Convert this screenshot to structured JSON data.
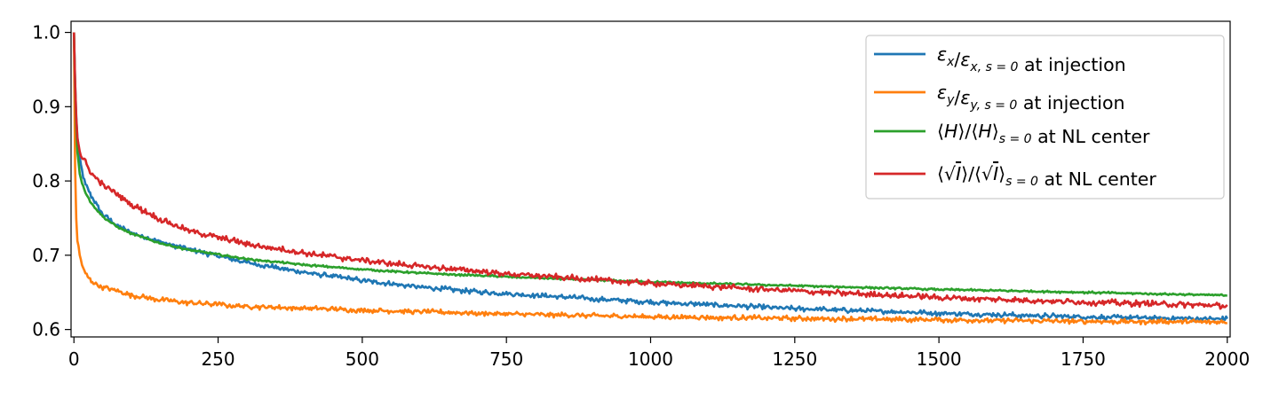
{
  "chart_data": {
    "type": "line",
    "title": "",
    "xlabel": "",
    "ylabel": "",
    "xlim": [
      -5,
      2005
    ],
    "ylim": [
      0.59,
      1.015
    ],
    "x_ticks": [
      0,
      250,
      500,
      750,
      1000,
      1250,
      1500,
      1750,
      2000
    ],
    "x_tick_labels": [
      "0",
      "250",
      "500",
      "750",
      "1000",
      "1250",
      "1500",
      "1750",
      "2000"
    ],
    "y_ticks": [
      0.6,
      0.7,
      0.8,
      0.9,
      1.0
    ],
    "y_tick_labels": [
      "0.6",
      "0.7",
      "0.8",
      "0.9",
      "1.0"
    ],
    "grid": false,
    "legend_position": "top-right",
    "series": [
      {
        "name": "εx/εx,s=0 at injection",
        "legend_parts": [
          {
            "t": "ε",
            "i": true
          },
          {
            "t": "x",
            "sub": true,
            "i": true
          },
          {
            "t": "/"
          },
          {
            "t": "ε",
            "i": true
          },
          {
            "t": "x, s = 0",
            "sub": true,
            "i": true
          },
          {
            "t": " at injection"
          }
        ],
        "color": "#1f77b4",
        "noise": 0.0025,
        "x": [
          0,
          3,
          6,
          10,
          15,
          20,
          30,
          50,
          75,
          100,
          150,
          200,
          300,
          400,
          500,
          600,
          750,
          1000,
          1250,
          1500,
          1750,
          2000
        ],
        "y": [
          1.0,
          0.9,
          0.86,
          0.83,
          0.81,
          0.795,
          0.78,
          0.755,
          0.74,
          0.73,
          0.718,
          0.708,
          0.69,
          0.677,
          0.666,
          0.657,
          0.648,
          0.637,
          0.628,
          0.622,
          0.617,
          0.614
        ]
      },
      {
        "name": "εy/εy,s=0 at injection",
        "legend_parts": [
          {
            "t": "ε",
            "i": true
          },
          {
            "t": "y",
            "sub": true,
            "i": true
          },
          {
            "t": "/"
          },
          {
            "t": "ε",
            "i": true
          },
          {
            "t": "y, s = 0",
            "sub": true,
            "i": true
          },
          {
            "t": " at injection"
          }
        ],
        "color": "#ff7f0e",
        "noise": 0.0025,
        "x": [
          0,
          2,
          4,
          6,
          10,
          15,
          20,
          30,
          50,
          75,
          100,
          150,
          200,
          300,
          500,
          750,
          1000,
          1250,
          1500,
          1750,
          2000
        ],
        "y": [
          1.0,
          0.82,
          0.75,
          0.72,
          0.7,
          0.685,
          0.675,
          0.665,
          0.657,
          0.652,
          0.646,
          0.64,
          0.636,
          0.631,
          0.626,
          0.621,
          0.617,
          0.615,
          0.613,
          0.611,
          0.61
        ]
      },
      {
        "name": "⟨H⟩/⟨H⟩s=0 at NL center",
        "legend_parts": [
          {
            "t": "⟨"
          },
          {
            "t": "H",
            "i": true
          },
          {
            "t": "⟩/⟨"
          },
          {
            "t": "H",
            "i": true
          },
          {
            "t": "⟩"
          },
          {
            "t": "s = 0",
            "sub": true,
            "i": true
          },
          {
            "t": " at NL center"
          }
        ],
        "color": "#2ca02c",
        "noise": 0.001,
        "x": [
          0,
          3,
          6,
          10,
          15,
          20,
          30,
          50,
          75,
          100,
          150,
          200,
          300,
          400,
          500,
          600,
          750,
          1000,
          1250,
          1500,
          1750,
          2000
        ],
        "y": [
          1.0,
          0.89,
          0.84,
          0.81,
          0.795,
          0.785,
          0.77,
          0.752,
          0.738,
          0.729,
          0.716,
          0.707,
          0.695,
          0.687,
          0.681,
          0.676,
          0.671,
          0.664,
          0.659,
          0.654,
          0.65,
          0.646
        ]
      },
      {
        "name": "⟨√I⟩/⟨√I⟩s=0 at NL center",
        "legend_parts": [
          {
            "t": "⟨√"
          },
          {
            "t": "I",
            "i": true,
            "o": true
          },
          {
            "t": "⟩/⟨√"
          },
          {
            "t": "I",
            "i": true,
            "o": true
          },
          {
            "t": "⟩"
          },
          {
            "t": "s = 0",
            "sub": true,
            "i": true
          },
          {
            "t": " at NL center"
          }
        ],
        "color": "#d62728",
        "noise": 0.003,
        "x": [
          0,
          3,
          6,
          10,
          15,
          20,
          30,
          50,
          75,
          100,
          150,
          200,
          300,
          400,
          500,
          600,
          750,
          1000,
          1250,
          1500,
          1750,
          2000
        ],
        "y": [
          1.0,
          0.9,
          0.86,
          0.84,
          0.83,
          0.825,
          0.81,
          0.795,
          0.782,
          0.768,
          0.748,
          0.733,
          0.715,
          0.703,
          0.693,
          0.685,
          0.675,
          0.662,
          0.652,
          0.643,
          0.637,
          0.632
        ]
      }
    ]
  }
}
